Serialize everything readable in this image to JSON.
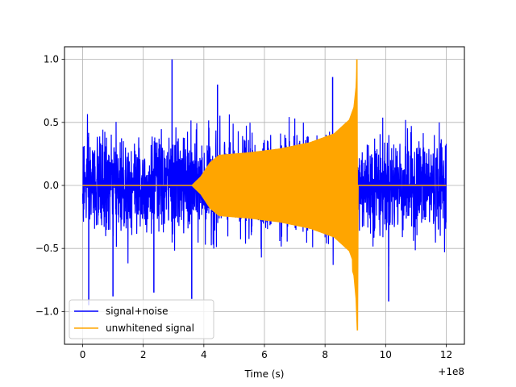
{
  "chart_data": {
    "type": "line",
    "title": "",
    "xlabel": "Time (s)",
    "ylabel": "",
    "x_offset_label": "+1e8",
    "xlim": [
      -0.6,
      12.6
    ],
    "ylim": [
      -1.26,
      1.1
    ],
    "x_ticks": [
      0,
      2,
      4,
      6,
      8,
      10,
      12
    ],
    "x_tick_labels": [
      "0",
      "2",
      "4",
      "6",
      "8",
      "10",
      "12"
    ],
    "y_ticks": [
      -1.0,
      -0.5,
      0.0,
      0.5,
      1.0
    ],
    "y_tick_labels": [
      "−1.0",
      "−0.5",
      "0.0",
      "0.5",
      "1.0"
    ],
    "grid": true,
    "legend": {
      "position": "lower-left"
    },
    "series": [
      {
        "name": "signal+noise",
        "color": "#0000ff",
        "style": "dense noise",
        "x_range": [
          0,
          12
        ],
        "typical_envelope": [
          -0.5,
          0.5
        ],
        "peak_max": 1.0,
        "peak_min": -0.95
      },
      {
        "name": "unwhitened signal",
        "color": "#ffa500",
        "style": "chirp",
        "x_range": [
          0,
          12
        ],
        "envelope": [
          [
            0.0,
            0.0
          ],
          [
            3.6,
            0.0
          ],
          [
            3.9,
            0.07
          ],
          [
            4.2,
            0.18
          ],
          [
            4.5,
            0.24
          ],
          [
            5.5,
            0.26
          ],
          [
            6.5,
            0.29
          ],
          [
            7.5,
            0.34
          ],
          [
            8.3,
            0.41
          ],
          [
            8.8,
            0.52
          ],
          [
            8.95,
            0.62
          ],
          [
            9.02,
            0.78
          ],
          [
            9.06,
            1.0
          ],
          [
            9.07,
            0.0
          ],
          [
            12.0,
            0.0
          ]
        ],
        "peak_max": 1.0,
        "peak_min": -1.15,
        "peak_x": 9.07
      }
    ]
  }
}
